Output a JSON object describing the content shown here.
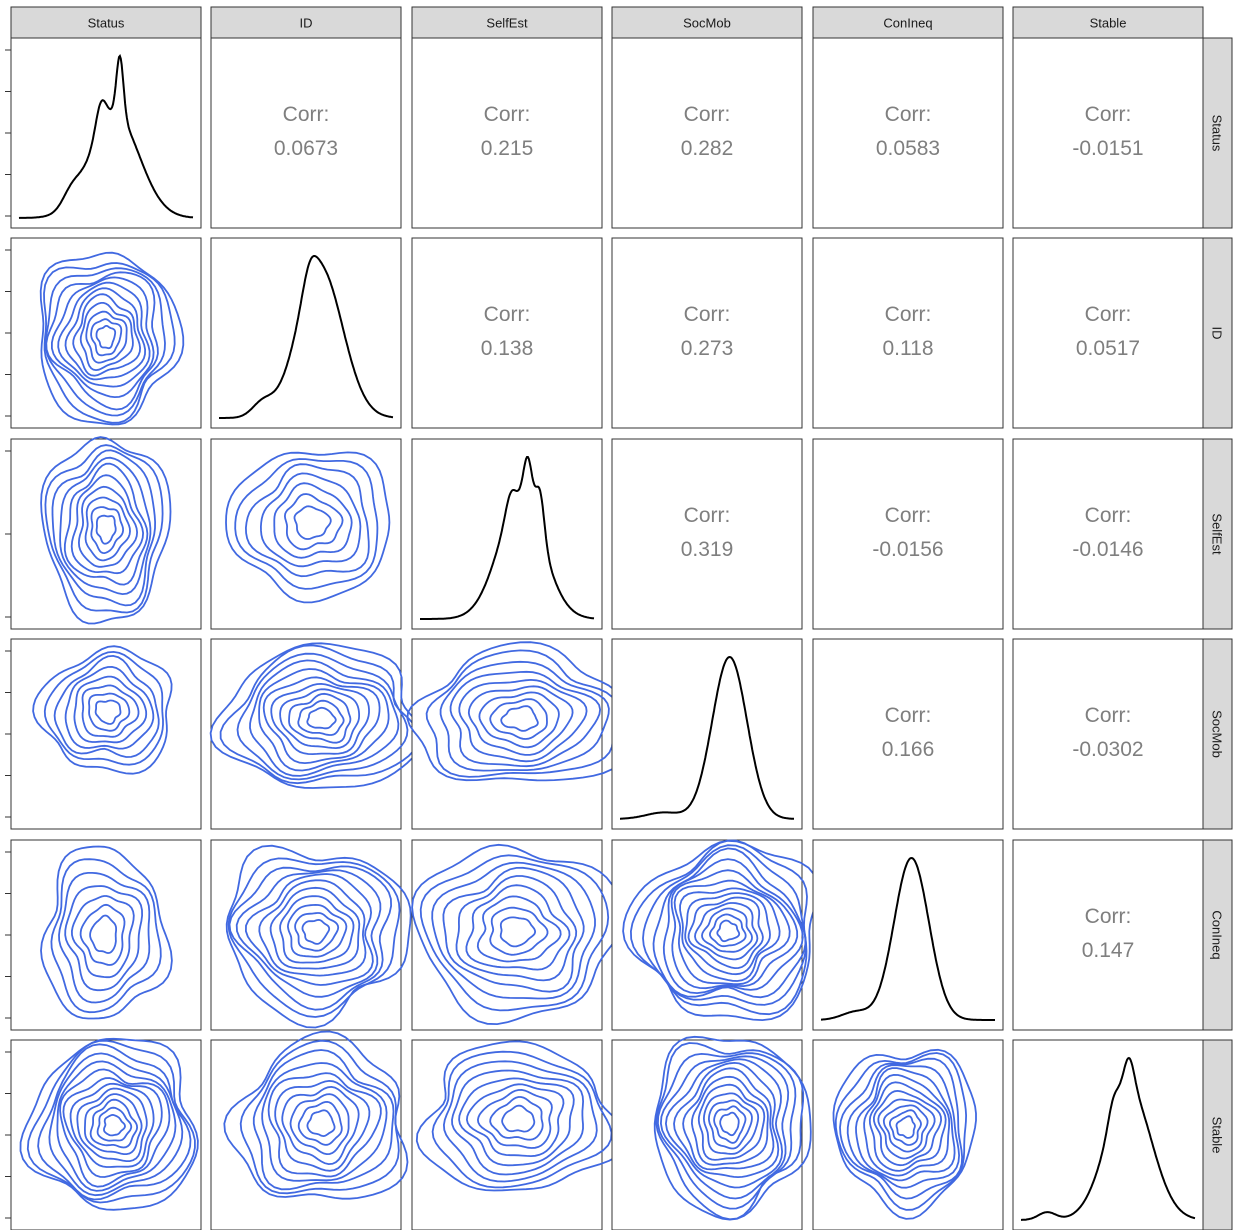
{
  "chart_data": {
    "type": "scatterplot-matrix",
    "variables": [
      "Status",
      "ID",
      "SelfEst",
      "SocMob",
      "ConIneq",
      "Stable"
    ],
    "corr_label": "Corr:",
    "correlations": [
      {
        "row": "Status",
        "col": "ID",
        "value": "0.0673"
      },
      {
        "row": "Status",
        "col": "SelfEst",
        "value": "0.215"
      },
      {
        "row": "Status",
        "col": "SocMob",
        "value": "0.282"
      },
      {
        "row": "Status",
        "col": "ConIneq",
        "value": "0.0583"
      },
      {
        "row": "Status",
        "col": "Stable",
        "value": "-0.0151"
      },
      {
        "row": "ID",
        "col": "SelfEst",
        "value": "0.138"
      },
      {
        "row": "ID",
        "col": "SocMob",
        "value": "0.273"
      },
      {
        "row": "ID",
        "col": "ConIneq",
        "value": "0.118"
      },
      {
        "row": "ID",
        "col": "Stable",
        "value": "0.0517"
      },
      {
        "row": "SelfEst",
        "col": "SocMob",
        "value": "0.319"
      },
      {
        "row": "SelfEst",
        "col": "ConIneq",
        "value": "-0.0156"
      },
      {
        "row": "SelfEst",
        "col": "Stable",
        "value": "-0.0146"
      },
      {
        "row": "SocMob",
        "col": "ConIneq",
        "value": "0.166"
      },
      {
        "row": "SocMob",
        "col": "Stable",
        "value": "-0.0302"
      },
      {
        "row": "ConIneq",
        "col": "Stable",
        "value": "0.147"
      }
    ],
    "diagonal": "density",
    "lower": "density-contour",
    "colors": {
      "density_line": "#000000",
      "contour_line": "#4169e1",
      "strip_fill": "#d9d9d9",
      "panel_border": "#333333",
      "corr_text": "#7f7f7f"
    }
  }
}
